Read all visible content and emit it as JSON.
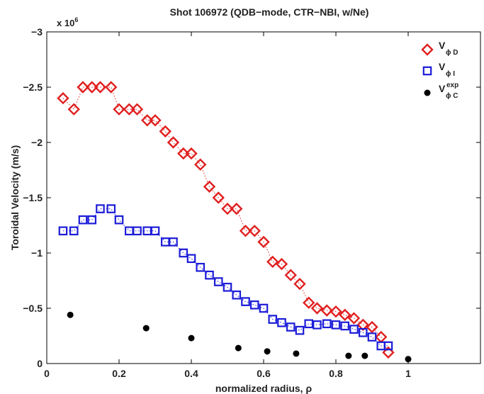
{
  "chart_data": {
    "type": "scatter",
    "title": "Shot 106972 (QDB−mode, CTR−NBI, w/Ne)",
    "xlabel": "normalized radius, ρ",
    "ylabel": "Toroidal Velocity (m/s)",
    "y_exponent_label": "x 10",
    "y_exponent_power": "6",
    "xlim": [
      0,
      1.2
    ],
    "ylim": [
      0,
      -3000000
    ],
    "y_reversed": true,
    "grid": false,
    "legend_position": "top-right",
    "x_ticks": [
      0,
      0.2,
      0.4,
      0.6,
      0.8,
      1
    ],
    "x_tick_labels": [
      "0",
      "0.2",
      "0.4",
      "0.6",
      "0.8",
      "1"
    ],
    "y_ticks": [
      0,
      -500000,
      -1000000,
      -1500000,
      -2000000,
      -2500000,
      -3000000
    ],
    "y_tick_labels": [
      "0",
      "−0.5",
      "−1",
      "−1.5",
      "−2",
      "−2.5",
      "−3"
    ],
    "series": [
      {
        "legend_main": "V",
        "legend_sub": "ϕ D",
        "legend_sup": "",
        "color": "#e02020",
        "marker": "diamond",
        "line": "dotted",
        "x": [
          0.045,
          0.075,
          0.1,
          0.125,
          0.148,
          0.178,
          0.2,
          0.228,
          0.25,
          0.278,
          0.3,
          0.328,
          0.35,
          0.378,
          0.4,
          0.425,
          0.45,
          0.475,
          0.5,
          0.525,
          0.55,
          0.575,
          0.6,
          0.625,
          0.65,
          0.675,
          0.7,
          0.725,
          0.748,
          0.775,
          0.8,
          0.825,
          0.85,
          0.875,
          0.9,
          0.925,
          0.945
        ],
        "y": [
          -2400000,
          -2300000,
          -2500000,
          -2500000,
          -2500000,
          -2500000,
          -2300000,
          -2300000,
          -2300000,
          -2200000,
          -2200000,
          -2100000,
          -2000000,
          -1900000,
          -1900000,
          -1800000,
          -1600000,
          -1500000,
          -1400000,
          -1400000,
          -1200000,
          -1200000,
          -1100000,
          -920000,
          -900000,
          -800000,
          -720000,
          -550000,
          -500000,
          -480000,
          -470000,
          -440000,
          -410000,
          -350000,
          -330000,
          -240000,
          -100000
        ]
      },
      {
        "legend_main": "V",
        "legend_sub": "ϕ I",
        "legend_sup": "",
        "color": "#1c1cd8",
        "marker": "square",
        "line": "dotted",
        "x": [
          0.045,
          0.075,
          0.1,
          0.125,
          0.148,
          0.178,
          0.2,
          0.228,
          0.25,
          0.278,
          0.3,
          0.328,
          0.35,
          0.378,
          0.4,
          0.425,
          0.45,
          0.475,
          0.5,
          0.525,
          0.55,
          0.575,
          0.6,
          0.625,
          0.65,
          0.675,
          0.7,
          0.725,
          0.748,
          0.775,
          0.8,
          0.825,
          0.85,
          0.875,
          0.9,
          0.925,
          0.945
        ],
        "y": [
          -1200000,
          -1200000,
          -1300000,
          -1300000,
          -1400000,
          -1400000,
          -1300000,
          -1200000,
          -1200000,
          -1200000,
          -1200000,
          -1100000,
          -1100000,
          -1000000,
          -950000,
          -870000,
          -800000,
          -740000,
          -690000,
          -620000,
          -560000,
          -530000,
          -500000,
          -400000,
          -370000,
          -330000,
          -300000,
          -360000,
          -350000,
          -360000,
          -350000,
          -340000,
          -310000,
          -280000,
          -240000,
          -160000,
          -160000
        ]
      },
      {
        "legend_main": "V",
        "legend_sub": "ϕ C",
        "legend_sup": "exp",
        "color": "#000000",
        "marker": "dot",
        "line": "none",
        "x": [
          0.065,
          0.275,
          0.4,
          0.53,
          0.61,
          0.69,
          0.835,
          0.88,
          1.0
        ],
        "y": [
          -440000,
          -320000,
          -230000,
          -140000,
          -110000,
          -90000,
          -70000,
          -70000,
          -40000
        ]
      }
    ]
  }
}
